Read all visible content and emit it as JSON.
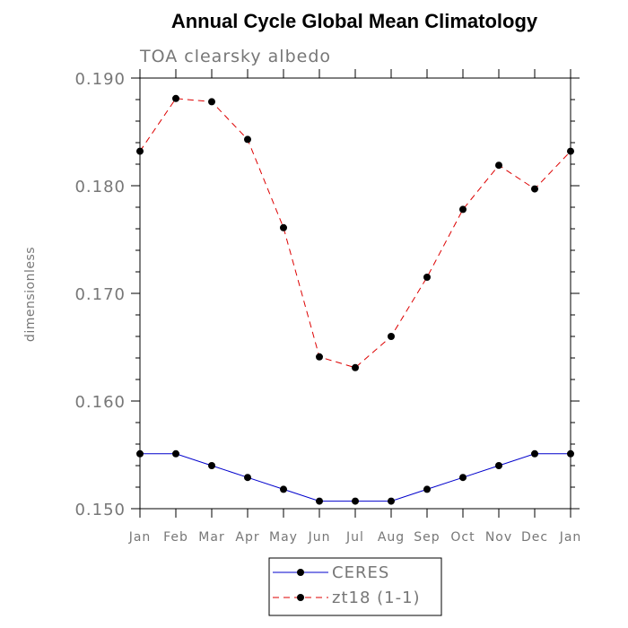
{
  "chart_data": {
    "type": "line",
    "title": "Annual Cycle Global Mean Climatology",
    "subtitle": "TOA clearsky albedo",
    "xlabel": "",
    "ylabel": "dimensionless",
    "categories": [
      "Jan",
      "Feb",
      "Mar",
      "Apr",
      "May",
      "Jun",
      "Jul",
      "Aug",
      "Sep",
      "Oct",
      "Nov",
      "Dec",
      "Jan"
    ],
    "ylim": [
      0.15,
      0.19
    ],
    "yticks": [
      0.15,
      0.16,
      0.17,
      0.18,
      0.19
    ],
    "ytick_labels": [
      "0.150",
      "0.160",
      "0.170",
      "0.180",
      "0.190"
    ],
    "grid": false,
    "legend_position": "bottom-center",
    "series": [
      {
        "name": "CERES",
        "color": "#0000cc",
        "line_style": "solid",
        "marker": "filled-circle",
        "values": [
          0.1551,
          0.1551,
          0.154,
          0.1529,
          0.1518,
          0.1507,
          0.1507,
          0.1507,
          0.1518,
          0.1529,
          0.154,
          0.1551,
          0.1551
        ]
      },
      {
        "name": "zt18 (1-1)",
        "color": "#dd0000",
        "line_style": "dashed",
        "marker": "filled-circle",
        "values": [
          0.1832,
          0.1881,
          0.1878,
          0.1843,
          0.1761,
          0.1641,
          0.1631,
          0.166,
          0.1715,
          0.1778,
          0.1819,
          0.1797,
          0.1832
        ]
      }
    ]
  }
}
